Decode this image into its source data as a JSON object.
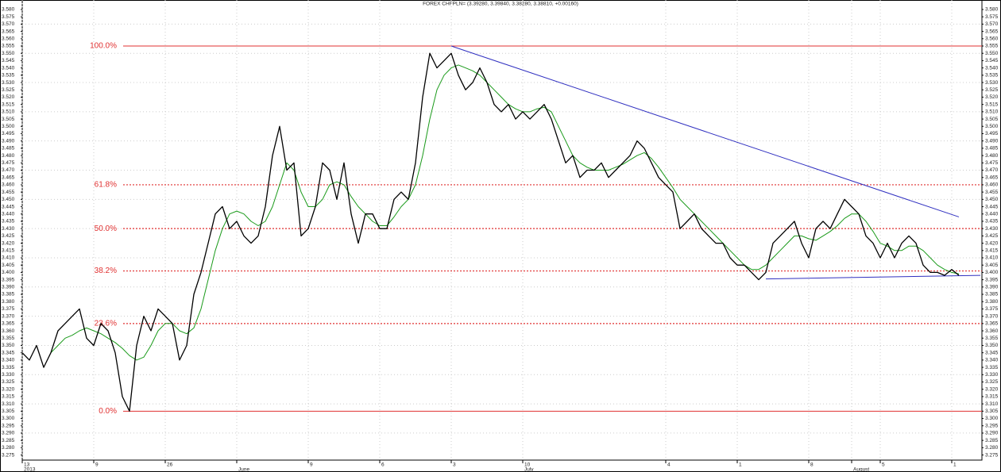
{
  "chart_data": {
    "type": "line",
    "title": "FOREX CHFPLN= (3.39280, 3.39840, 3.38280, 3.38810, +0.00160)",
    "categories": [
      "13",
      null,
      null,
      null,
      null,
      null,
      null,
      null,
      null,
      null,
      "9",
      null,
      null,
      null,
      null,
      null,
      null,
      null,
      null,
      null,
      "26",
      null,
      null,
      null,
      null,
      null,
      null,
      null,
      null,
      null,
      null,
      null,
      null,
      null,
      null,
      null,
      null,
      null,
      null,
      null,
      "9",
      null,
      null,
      null,
      null,
      null,
      null,
      null,
      null,
      null,
      "6",
      null,
      null,
      null,
      null,
      null,
      null,
      null,
      null,
      null,
      "3",
      null,
      null,
      null,
      null,
      null,
      null,
      null,
      null,
      null,
      "10",
      null,
      null,
      null,
      null,
      null,
      null,
      null,
      null,
      null,
      null,
      null,
      null,
      null,
      null,
      null,
      null,
      null,
      null,
      null,
      "4",
      null,
      null,
      null,
      null,
      null,
      null,
      null,
      null,
      null,
      "1",
      null,
      null,
      null,
      null,
      null,
      null,
      null,
      null,
      null,
      "8",
      null,
      null,
      null,
      null,
      null,
      null,
      null,
      null,
      null,
      "5",
      null,
      null,
      null,
      null,
      null,
      null,
      null,
      null,
      null,
      "1",
      null,
      null,
      null,
      null
    ],
    "periods": [
      "2013",
      null,
      null,
      null,
      null,
      null,
      null,
      null,
      null,
      null,
      null,
      null,
      null,
      null,
      null,
      null,
      null,
      null,
      null,
      null,
      null,
      null,
      null,
      null,
      null,
      null,
      null,
      null,
      null,
      null,
      "June",
      null,
      null,
      null,
      null,
      null,
      null,
      null,
      null,
      null,
      null,
      null,
      null,
      null,
      null,
      null,
      null,
      null,
      null,
      null,
      null,
      null,
      null,
      null,
      null,
      null,
      null,
      null,
      null,
      null,
      null,
      null,
      null,
      null,
      null,
      null,
      null,
      null,
      null,
      null,
      "July",
      null,
      null,
      null,
      null,
      null,
      null,
      null,
      null,
      null,
      null,
      null,
      null,
      null,
      null,
      null,
      null,
      null,
      null,
      null,
      null,
      null,
      null,
      null,
      null,
      null,
      null,
      null,
      null,
      null,
      null,
      null,
      null,
      null,
      null,
      null,
      null,
      null,
      null,
      null,
      null,
      null,
      null,
      null,
      null,
      null,
      "August",
      null,
      null,
      null,
      null,
      null,
      null,
      null,
      null,
      null,
      null,
      null,
      null,
      null,
      null,
      null,
      null,
      null,
      null
    ],
    "series": [
      {
        "color": "#000000",
        "values": [
          3.345,
          3.34,
          3.35,
          3.335,
          3.345,
          3.36,
          3.365,
          3.37,
          3.375,
          3.355,
          3.35,
          3.365,
          3.36,
          3.345,
          3.315,
          3.305,
          3.35,
          3.37,
          3.36,
          3.375,
          3.37,
          3.365,
          3.34,
          3.35,
          3.385,
          3.4,
          3.42,
          3.44,
          3.445,
          3.43,
          3.435,
          3.425,
          3.42,
          3.425,
          3.445,
          3.48,
          3.5,
          3.47,
          3.475,
          3.425,
          3.43,
          3.445,
          3.475,
          3.47,
          3.45,
          3.475,
          3.44,
          3.42,
          3.44,
          3.44,
          3.43,
          3.43,
          3.45,
          3.455,
          3.45,
          3.475,
          3.52,
          3.55,
          3.54,
          3.545,
          3.55,
          3.535,
          3.525,
          3.53,
          3.54,
          3.53,
          3.515,
          3.51,
          3.515,
          3.505,
          3.51,
          3.505,
          3.51,
          3.515,
          3.505,
          3.49,
          3.475,
          3.48,
          3.465,
          3.47,
          3.47,
          3.475,
          3.465,
          3.47,
          3.475,
          3.48,
          3.49,
          3.485,
          3.475,
          3.465,
          3.46,
          3.455,
          3.43,
          3.435,
          3.44,
          3.43,
          3.425,
          3.42,
          3.42,
          3.41,
          3.405,
          3.405,
          3.4,
          3.395,
          3.4,
          3.42,
          3.425,
          3.43,
          3.435,
          3.42,
          3.41,
          3.43,
          3.435,
          3.43,
          3.44,
          3.45,
          3.445,
          3.44,
          3.425,
          3.42,
          3.41,
          3.42,
          3.41,
          3.42,
          3.425,
          3.42,
          3.405,
          3.4,
          3.4,
          3.398,
          3.402,
          3.398,
          null,
          null,
          null
        ]
      },
      {
        "color": "#1a9a1a",
        "values": [
          null,
          null,
          null,
          null,
          3.345,
          3.35,
          3.355,
          3.357,
          3.36,
          3.362,
          3.36,
          3.358,
          3.355,
          3.352,
          3.348,
          3.343,
          3.34,
          3.342,
          3.35,
          3.36,
          3.365,
          3.365,
          3.36,
          3.358,
          3.362,
          3.375,
          3.395,
          3.415,
          3.43,
          3.44,
          3.442,
          3.44,
          3.435,
          3.432,
          3.435,
          3.445,
          3.46,
          3.475,
          3.47,
          3.455,
          3.445,
          3.445,
          3.45,
          3.46,
          3.462,
          3.46,
          3.452,
          3.445,
          3.44,
          3.435,
          3.432,
          3.432,
          3.438,
          3.445,
          3.45,
          3.46,
          3.48,
          3.505,
          3.525,
          3.535,
          3.54,
          3.542,
          3.54,
          3.538,
          3.535,
          3.53,
          3.525,
          3.52,
          3.515,
          3.512,
          3.51,
          3.51,
          3.512,
          3.513,
          3.51,
          3.5,
          3.49,
          3.48,
          3.475,
          3.472,
          3.47,
          3.47,
          3.47,
          3.472,
          3.474,
          3.477,
          3.48,
          3.482,
          3.478,
          3.472,
          3.465,
          3.458,
          3.45,
          3.445,
          3.44,
          3.435,
          3.43,
          3.425,
          3.42,
          3.415,
          3.41,
          3.405,
          3.402,
          3.402,
          3.405,
          3.41,
          3.415,
          3.42,
          3.425,
          3.425,
          3.423,
          3.422,
          3.425,
          3.428,
          3.432,
          3.437,
          3.44,
          3.44,
          3.435,
          3.428,
          3.42,
          3.418,
          3.415,
          3.415,
          3.418,
          3.418,
          3.415,
          3.41,
          3.405,
          3.402,
          3.4,
          3.399,
          null,
          null,
          null
        ]
      }
    ],
    "levels": [
      {
        "label": "100.0%",
        "value": 3.555,
        "color": "#e03030",
        "style": "solid"
      },
      {
        "label": "61.8%",
        "value": 3.46,
        "color": "#e03030",
        "style": "dotted"
      },
      {
        "label": "50.0%",
        "value": 3.43,
        "color": "#e03030",
        "style": "dotted"
      },
      {
        "label": "38.2%",
        "value": 3.401,
        "color": "#e03030",
        "style": "dotted"
      },
      {
        "label": "23.6%",
        "value": 3.365,
        "color": "#e03030",
        "style": "dotted"
      },
      {
        "label": "0.0%",
        "value": 3.305,
        "color": "#e03030",
        "style": "solid"
      }
    ],
    "trendlines": [
      {
        "color": "#3030c0",
        "values": [
          3.555,
          3.438
        ]
      },
      {
        "color": "#3030c0",
        "values": [
          3.3955,
          3.398
        ]
      }
    ],
    "ylim": [
      3.2715,
      3.5865
    ],
    "yticks": [
      3.275,
      {
        "value": 3.28,
        "label": "3.280"
      },
      3.285,
      {
        "value": 3.29,
        "label": "3.290"
      },
      3.295,
      {
        "value": 3.3,
        "label": "3.300"
      },
      3.305,
      {
        "value": 3.31,
        "label": "3.310"
      },
      3.315,
      {
        "value": 3.32,
        "label": "3.320"
      },
      3.325,
      {
        "value": 3.33,
        "label": "3.330"
      },
      3.335,
      {
        "value": 3.34,
        "label": "3.340"
      },
      3.345,
      {
        "value": 3.35,
        "label": "3.350"
      },
      3.355,
      {
        "value": 3.36,
        "label": "3.360"
      },
      3.365,
      {
        "value": 3.37,
        "label": "3.370"
      },
      3.375,
      {
        "value": 3.38,
        "label": "3.380"
      },
      3.385,
      {
        "value": 3.39,
        "label": "3.390"
      },
      3.395,
      {
        "value": 3.4,
        "label": "3.400"
      },
      3.405,
      {
        "value": 3.41,
        "label": "3.410"
      },
      3.415,
      {
        "value": 3.42,
        "label": "3.420"
      },
      3.425,
      {
        "value": 3.43,
        "label": "3.430"
      },
      3.435,
      {
        "value": 3.44,
        "label": "3.440"
      },
      3.445,
      {
        "value": 3.45,
        "label": "3.450"
      },
      3.455,
      {
        "value": 3.46,
        "label": "3.460"
      },
      3.465,
      {
        "value": 3.47,
        "label": "3.470"
      },
      3.475,
      {
        "value": 3.48,
        "label": "3.480"
      },
      3.485,
      {
        "value": 3.49,
        "label": "3.490"
      },
      3.495,
      {
        "value": 3.5,
        "label": "3.500"
      },
      3.505,
      {
        "value": 3.51,
        "label": "3.510"
      },
      3.515,
      {
        "value": 3.52,
        "label": "3.520"
      },
      3.525,
      {
        "value": 3.53,
        "label": "3.530"
      },
      3.535,
      {
        "value": 3.54,
        "label": "3.540"
      },
      3.545,
      {
        "value": 3.55,
        "label": "3.550"
      },
      3.555,
      {
        "value": 3.56,
        "label": "3.560"
      },
      3.565,
      {
        "value": 3.57,
        "label": "3.570"
      },
      3.575,
      {
        "value": 3.58,
        "label": "3.580"
      }
    ],
    "grid": true
  }
}
